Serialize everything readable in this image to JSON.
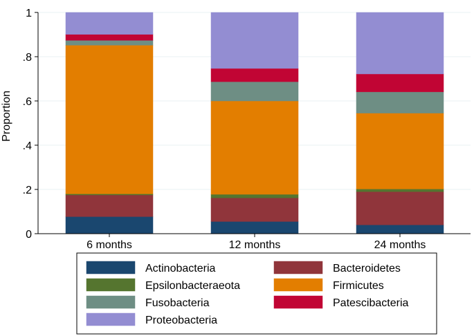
{
  "chart_data": {
    "type": "bar",
    "stacked": true,
    "title": "",
    "xlabel": "",
    "ylabel": "Proportion",
    "ylim": [
      0,
      1
    ],
    "yticks": [
      0,
      0.2,
      0.4,
      0.6,
      0.8,
      1
    ],
    "ytick_labels": [
      "0",
      ".2",
      ".4",
      ".6",
      ".8",
      "1"
    ],
    "grid": true,
    "legend_position": "bottom",
    "categories": [
      "6 months",
      "12 months",
      "24 months"
    ],
    "series": [
      {
        "name": "Actinobacteria",
        "color": "#1a476f",
        "values": [
          0.077,
          0.055,
          0.04
        ]
      },
      {
        "name": "Bacteroidetes",
        "color": "#90353b",
        "values": [
          0.098,
          0.107,
          0.15
        ]
      },
      {
        "name": "Epsilonbacteraeota",
        "color": "#55752f",
        "values": [
          0.005,
          0.016,
          0.012
        ]
      },
      {
        "name": "Firmicutes",
        "color": "#e37e00",
        "values": [
          0.672,
          0.422,
          0.343
        ]
      },
      {
        "name": "Fusobacteria",
        "color": "#6e8e84",
        "values": [
          0.022,
          0.087,
          0.096
        ]
      },
      {
        "name": "Patescibacteria",
        "color": "#c10534",
        "values": [
          0.027,
          0.06,
          0.081
        ]
      },
      {
        "name": "Proteobacteria",
        "color": "#938dd2",
        "values": [
          0.099,
          0.253,
          0.278
        ]
      }
    ]
  }
}
